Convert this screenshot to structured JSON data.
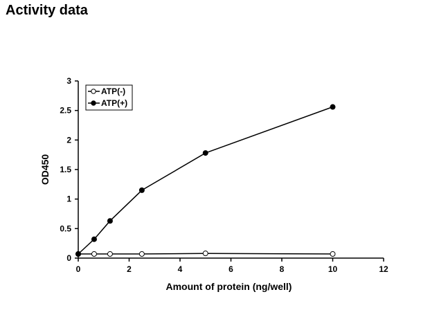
{
  "page": {
    "title": "Activity data"
  },
  "chart_data": {
    "type": "line",
    "xlabel": "Amount of protein (ng/well)",
    "ylabel": "OD450",
    "xlim": [
      0,
      12
    ],
    "ylim": [
      0,
      3
    ],
    "xticks": [
      "0",
      "2",
      "4",
      "6",
      "8",
      "10",
      "12"
    ],
    "yticks": [
      "0",
      "0.5",
      "1",
      "1.5",
      "2",
      "2.5",
      "3"
    ],
    "grid": false,
    "legend_position": "top-left",
    "series": [
      {
        "name": "ATP(-)",
        "marker": "open-circle",
        "color": "#000000",
        "x": [
          0,
          0.625,
          1.25,
          2.5,
          5,
          10
        ],
        "y": [
          0.07,
          0.07,
          0.07,
          0.07,
          0.08,
          0.07
        ]
      },
      {
        "name": "ATP(+)",
        "marker": "filled-circle",
        "color": "#000000",
        "x": [
          0,
          0.625,
          1.25,
          2.5,
          5,
          10
        ],
        "y": [
          0.07,
          0.32,
          0.63,
          1.15,
          1.78,
          2.56
        ]
      }
    ]
  }
}
